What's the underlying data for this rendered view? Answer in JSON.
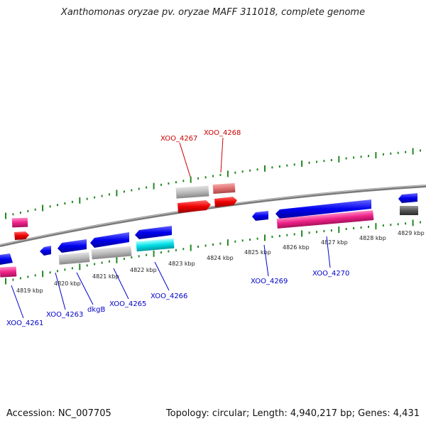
{
  "title": "Xanthomonas oryzae pv. oryzae MAFF 311018, complete genome",
  "footer": {
    "accession": "Accession: NC_007705",
    "summary": "Topology: circular; Length: 4,940,217 bp; Genes: 4,431"
  },
  "scale_labels": [
    "4819 kbp",
    "4820 kbp",
    "4821 kbp",
    "4822 kbp",
    "4823 kbp",
    "4824 kbp",
    "4825 kbp",
    "4826 kbp",
    "4827 kbp",
    "4828 kbp",
    "4829 kbp"
  ],
  "gene_labels": {
    "g4261": "XOO_4261",
    "g4263": "XOO_4263",
    "dkgB": "dkgB",
    "g4265": "XOO_4265",
    "g4266": "XOO_4266",
    "g4267": "XOO_4267",
    "g4268": "XOO_4268",
    "g4269": "XOO_4269",
    "g4270": "XOO_4270"
  },
  "colors": {
    "forward_gene": "#0000ee",
    "reverse_gene_red": "#ee0000",
    "pink_feature": "#ee2288",
    "salmon_feature": "#e07070",
    "gray_feature": "#bbbbbb",
    "cyan_feature": "#00e0e8",
    "dark_feature": "#555555",
    "backbone": "#888888",
    "tick_green": "#228822"
  }
}
